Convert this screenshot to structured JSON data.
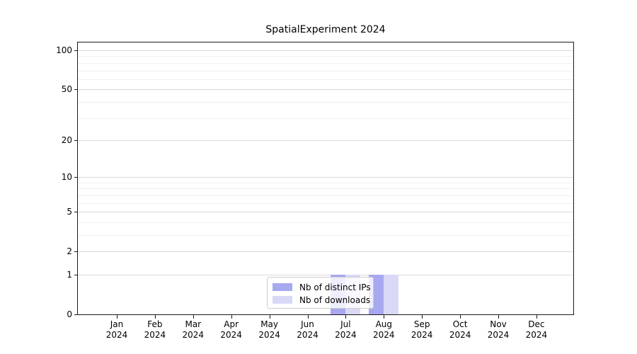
{
  "figure": {
    "background": "#ffffff"
  },
  "colors": {
    "major_grid": "#d8d8d8",
    "minor_grid": "#f0f0f0",
    "axis": "#1a1a1a",
    "legend_border": "#cccccc",
    "distinct_ips": "#a8a8f0",
    "downloads": "#d9d9f7"
  },
  "chart_data": {
    "type": "bar",
    "title": "SpatialExperiment 2024",
    "categories": [
      "Jan",
      "Feb",
      "Mar",
      "Apr",
      "May",
      "Jun",
      "Jul",
      "Aug",
      "Sep",
      "Oct",
      "Nov",
      "Dec"
    ],
    "year_label": "2024",
    "series": [
      {
        "name": "Nb of distinct IPs",
        "color": "#a8a8f0",
        "values": [
          0,
          0,
          0,
          0,
          0,
          0,
          1,
          1,
          0,
          0,
          0,
          0
        ]
      },
      {
        "name": "Nb of downloads",
        "color": "#d9d9f7",
        "values": [
          0,
          0,
          0,
          0,
          0,
          0,
          1,
          1,
          0,
          0,
          0,
          0
        ]
      }
    ],
    "y_axis": {
      "scale": "log1p",
      "ticks": [
        0,
        1,
        2,
        5,
        10,
        20,
        50,
        100
      ],
      "minor_ticks": [
        3,
        4,
        6,
        7,
        8,
        9,
        30,
        40,
        60,
        70,
        80,
        90
      ],
      "ylim": [
        0,
        115
      ]
    },
    "x_axis": {
      "label": ""
    },
    "legend": {
      "position": "bottom-center",
      "entries": [
        "Nb of distinct IPs",
        "Nb of downloads"
      ]
    },
    "grid": "horizontal"
  }
}
